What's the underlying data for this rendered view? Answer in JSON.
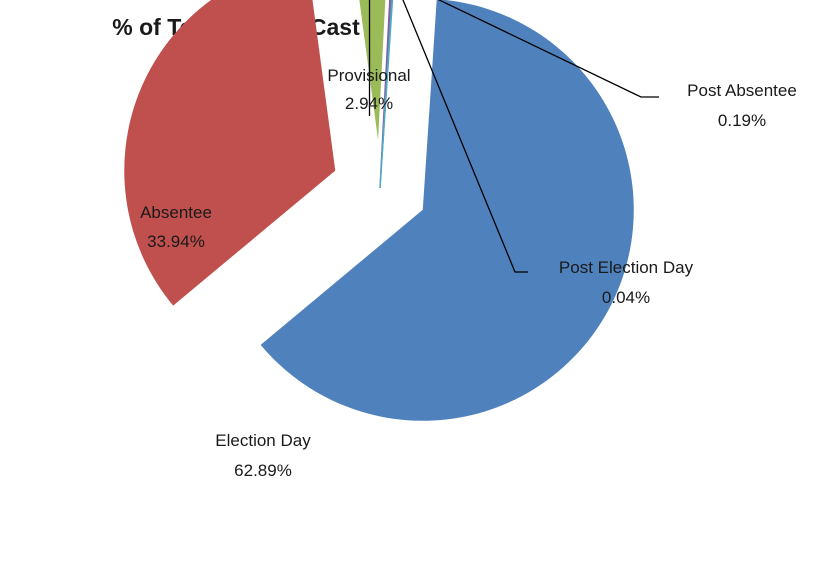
{
  "chart_data": {
    "type": "pie",
    "title": "% of Total Ballots Cast",
    "slices": [
      {
        "name": "Election Day",
        "value": 62.89,
        "label": "62.89%",
        "color": "#4f81bd",
        "exploded": true
      },
      {
        "name": "Absentee",
        "value": 33.94,
        "label": "33.94%",
        "color": "#c0504d",
        "exploded": true
      },
      {
        "name": "Provisional",
        "value": 2.94,
        "label": "2.94%",
        "color": "#9bbb59",
        "exploded": true
      },
      {
        "name": "Post Absentee",
        "value": 0.19,
        "label": "0.19%",
        "color": "#8064a2",
        "exploded": false
      },
      {
        "name": "Post Election Day",
        "value": 0.04,
        "label": "0.04%",
        "color": "#4bacc6",
        "exploded": false
      }
    ],
    "legend": "none",
    "labels": "data labels with leader lines"
  }
}
